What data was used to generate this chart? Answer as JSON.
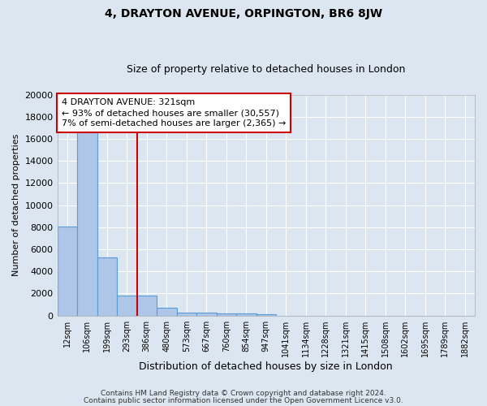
{
  "title": "4, DRAYTON AVENUE, ORPINGTON, BR6 8JW",
  "subtitle": "Size of property relative to detached houses in London",
  "xlabel": "Distribution of detached houses by size in London",
  "ylabel": "Number of detached properties",
  "categories": [
    "12sqm",
    "106sqm",
    "199sqm",
    "293sqm",
    "386sqm",
    "480sqm",
    "573sqm",
    "667sqm",
    "760sqm",
    "854sqm",
    "947sqm",
    "1041sqm",
    "1134sqm",
    "1228sqm",
    "1321sqm",
    "1415sqm",
    "1508sqm",
    "1602sqm",
    "1695sqm",
    "1789sqm",
    "1882sqm"
  ],
  "values": [
    8100,
    16600,
    5300,
    1800,
    1800,
    700,
    300,
    250,
    200,
    200,
    150,
    0,
    0,
    0,
    0,
    0,
    0,
    0,
    0,
    0,
    0
  ],
  "bar_color": "#aec6e8",
  "bar_edge_color": "#5b9bd5",
  "vline_color": "#cc0000",
  "vline_x_index": 3.5,
  "annotation_text": "4 DRAYTON AVENUE: 321sqm\n← 93% of detached houses are smaller (30,557)\n7% of semi-detached houses are larger (2,365) →",
  "annotation_box_facecolor": "#ffffff",
  "annotation_box_edgecolor": "#cc0000",
  "plot_bg_color": "#dce6f0",
  "fig_bg_color": "#dce6f0",
  "footer_line1": "Contains HM Land Registry data © Crown copyright and database right 2024.",
  "footer_line2": "Contains public sector information licensed under the Open Government Licence v3.0.",
  "ylim": [
    0,
    20000
  ],
  "yticks": [
    0,
    2000,
    4000,
    6000,
    8000,
    10000,
    12000,
    14000,
    16000,
    18000,
    20000
  ]
}
